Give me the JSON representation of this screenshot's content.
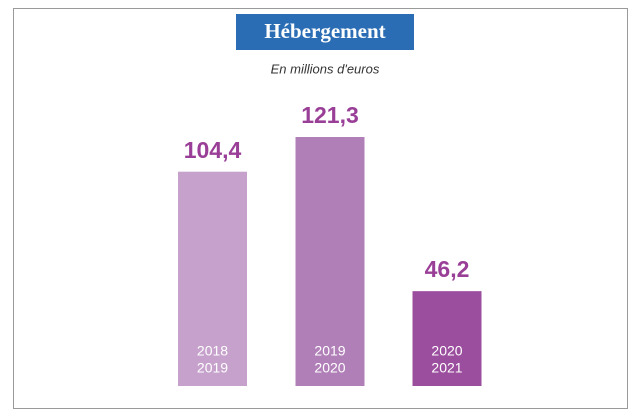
{
  "chart_data": {
    "type": "bar",
    "title": "Hébergement",
    "subtitle": "En millions d'euros",
    "categories": [
      [
        "2018",
        "2019"
      ],
      [
        "2019",
        "2020"
      ],
      [
        "2020",
        "2021"
      ]
    ],
    "values": [
      104.4,
      121.3,
      46.2
    ],
    "value_labels": [
      "104,4",
      "121,3",
      "46,2"
    ],
    "colors": [
      "#c6a1cc",
      "#b17fb8",
      "#9b4d9e"
    ]
  }
}
